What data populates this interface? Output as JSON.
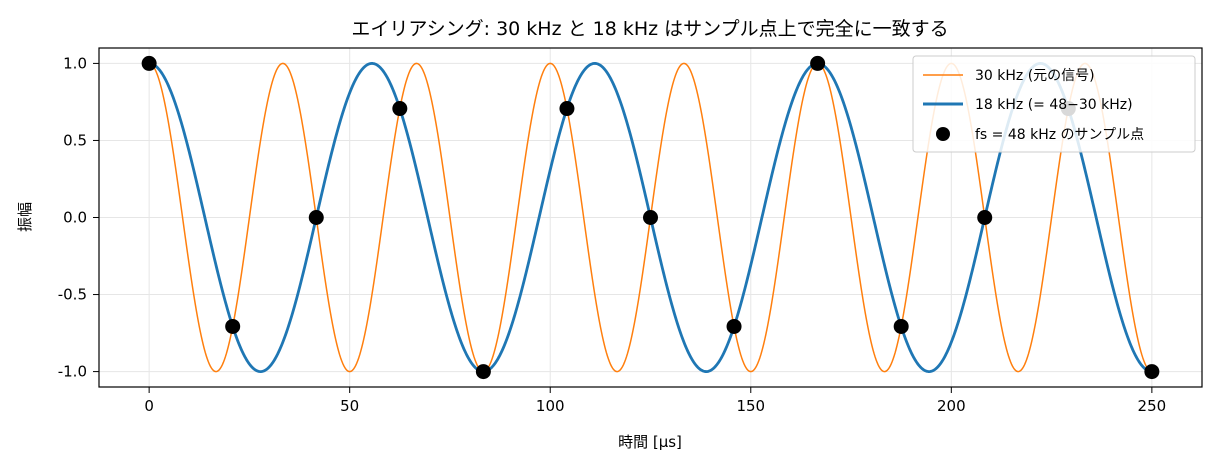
{
  "chart_data": {
    "type": "line",
    "title": "エイリアシング: 30 kHz と 18 kHz はサンプル点上で完全に一致する",
    "xlabel": "時間 [μs]",
    "ylabel": "振幅",
    "xlim": [
      -12.5,
      262.5
    ],
    "ylim": [
      -1.1,
      1.1
    ],
    "xticks": [
      0,
      50,
      100,
      150,
      200,
      250
    ],
    "xtick_labels": [
      "0",
      "50",
      "100",
      "150",
      "200",
      "250"
    ],
    "yticks": [
      1.0,
      0.5,
      0.0,
      -0.5,
      -1.0
    ],
    "ytick_labels": [
      "1.0",
      "0.5",
      "0.0",
      "-0.5",
      "-1.0"
    ],
    "grid": true,
    "legend_position": "top-right",
    "series": [
      {
        "name": "30 kHz (元の信号)",
        "kind": "cosine",
        "frequency_khz": 30,
        "color": "#ff7f0e"
      },
      {
        "name": "18 kHz (= 48−30 kHz)",
        "kind": "cosine",
        "frequency_khz": 18,
        "color": "#1f77b4"
      },
      {
        "name": "fs = 48 kHz のサンプル点",
        "kind": "points",
        "color": "#000000",
        "x": [
          0,
          20.83,
          41.67,
          62.5,
          83.33,
          104.17,
          125,
          145.83,
          166.67,
          187.5,
          208.33,
          229.17,
          250
        ],
        "y": [
          1.0,
          -0.707,
          0.0,
          0.707,
          -1.0,
          0.707,
          0.0,
          -0.707,
          1.0,
          -0.707,
          0.0,
          0.707,
          -1.0
        ]
      }
    ]
  }
}
